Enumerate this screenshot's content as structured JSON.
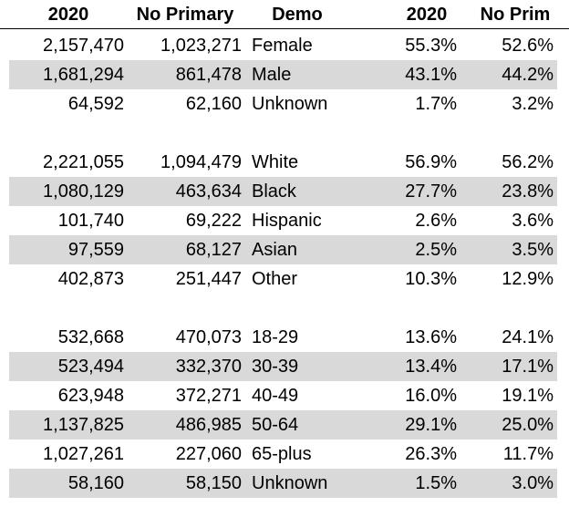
{
  "header": {
    "col1": "2020",
    "col2": "No Primary",
    "col3": "Demo",
    "col4": "2020",
    "col5": "No Prim"
  },
  "gender": [
    {
      "total": "2,157,470",
      "no_primary": "1,023,271",
      "demo": "Female",
      "pct_2020": "55.3%",
      "pct_no_prim": "52.6%"
    },
    {
      "total": "1,681,294",
      "no_primary": "861,478",
      "demo": "Male",
      "pct_2020": "43.1%",
      "pct_no_prim": "44.2%"
    },
    {
      "total": "64,592",
      "no_primary": "62,160",
      "demo": "Unknown",
      "pct_2020": "1.7%",
      "pct_no_prim": "3.2%"
    }
  ],
  "race": [
    {
      "total": "2,221,055",
      "no_primary": "1,094,479",
      "demo": "White",
      "pct_2020": "56.9%",
      "pct_no_prim": "56.2%"
    },
    {
      "total": "1,080,129",
      "no_primary": "463,634",
      "demo": "Black",
      "pct_2020": "27.7%",
      "pct_no_prim": "23.8%"
    },
    {
      "total": "101,740",
      "no_primary": "69,222",
      "demo": "Hispanic",
      "pct_2020": "2.6%",
      "pct_no_prim": "3.6%"
    },
    {
      "total": "97,559",
      "no_primary": "68,127",
      "demo": "Asian",
      "pct_2020": "2.5%",
      "pct_no_prim": "3.5%"
    },
    {
      "total": "402,873",
      "no_primary": "251,447",
      "demo": "Other",
      "pct_2020": "10.3%",
      "pct_no_prim": "12.9%"
    }
  ],
  "age": [
    {
      "total": "532,668",
      "no_primary": "470,073",
      "demo": "18-29",
      "pct_2020": "13.6%",
      "pct_no_prim": "24.1%"
    },
    {
      "total": "523,494",
      "no_primary": "332,370",
      "demo": "30-39",
      "pct_2020": "13.4%",
      "pct_no_prim": "17.1%"
    },
    {
      "total": "623,948",
      "no_primary": "372,271",
      "demo": "40-49",
      "pct_2020": "16.0%",
      "pct_no_prim": "19.1%"
    },
    {
      "total": "1,137,825",
      "no_primary": "486,985",
      "demo": "50-64",
      "pct_2020": "29.1%",
      "pct_no_prim": "25.0%"
    },
    {
      "total": "1,027,261",
      "no_primary": "227,060",
      "demo": "65-plus",
      "pct_2020": "26.3%",
      "pct_no_prim": "11.7%"
    },
    {
      "total": "58,160",
      "no_primary": "58,150",
      "demo": "Unknown",
      "pct_2020": "1.5%",
      "pct_no_prim": "3.0%"
    }
  ]
}
